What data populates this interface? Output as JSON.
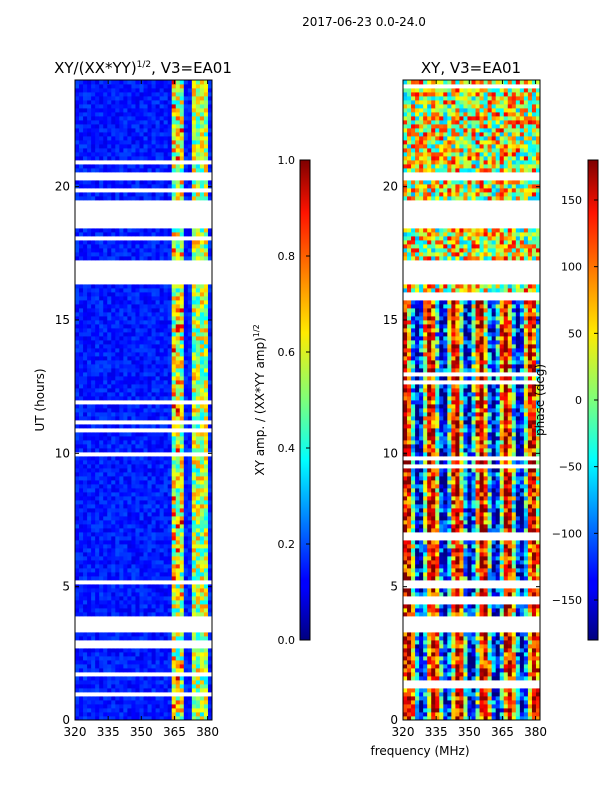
{
  "chart_data": [
    {
      "type": "heatmap",
      "suptitle": "2017-06-23 0.0-24.0",
      "title": "XY/(XX*YY)",
      "title_exp": "1/2",
      "title_suffix": ", V3=EA01",
      "xlabel": "frequency (MHz)",
      "ylabel": "UT (hours)",
      "xlim": [
        320,
        382
      ],
      "ylim": [
        0,
        24
      ],
      "xticks": [
        320,
        335,
        350,
        365,
        380
      ],
      "yticks": [
        0,
        5,
        10,
        15,
        20
      ],
      "colorbar": {
        "label": "XY amp. / (XX*YY amp)",
        "label_exp": "1/2",
        "range": [
          0.0,
          1.0
        ],
        "ticks": [
          "0.0",
          "0.2",
          "0.4",
          "0.6",
          "0.8",
          "1.0"
        ],
        "colormap": "jet"
      },
      "data_gaps_ut": [
        [
          3.3,
          3.9
        ],
        [
          16.3,
          17.2
        ],
        [
          18.4,
          19.5
        ],
        [
          20.2,
          20.5
        ]
      ],
      "bright_bands_mhz": [
        [
          364,
          370
        ],
        [
          373,
          378
        ],
        [
          378,
          381
        ]
      ]
    },
    {
      "type": "heatmap",
      "title": "XY, V3=EA01",
      "xlabel": "frequency (MHz)",
      "xlim": [
        320,
        382
      ],
      "ylim": [
        0,
        24
      ],
      "xticks": [
        320,
        335,
        350,
        365,
        380
      ],
      "yticks": [
        0,
        5,
        10,
        15,
        20
      ],
      "colorbar": {
        "label": "phase (deg)",
        "range": [
          -180,
          180
        ],
        "ticks": [
          "−150",
          "−100",
          "−50",
          "0",
          "50",
          "100",
          "150"
        ],
        "colormap": "jet"
      },
      "data_gaps_ut": [
        [
          3.3,
          3.9
        ],
        [
          16.3,
          17.2
        ],
        [
          18.4,
          19.5
        ],
        [
          20.2,
          20.5
        ]
      ]
    }
  ]
}
